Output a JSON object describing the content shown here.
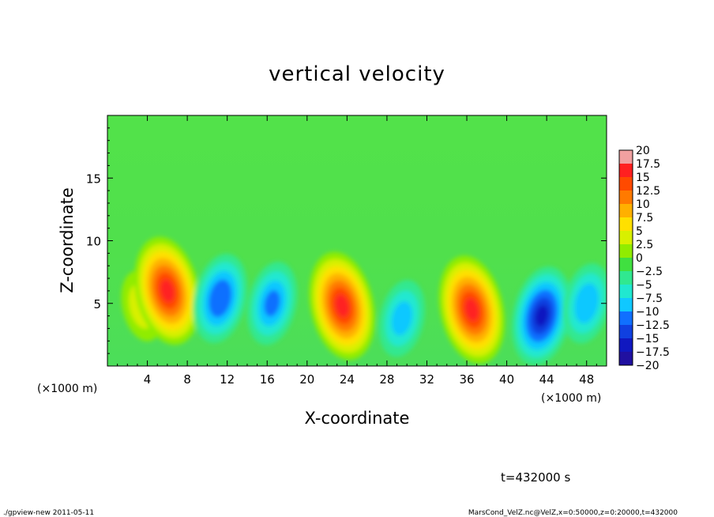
{
  "chart_data": {
    "type": "heatmap",
    "title": "vertical velocity",
    "xlabel": "X-coordinate",
    "ylabel": "Z-coordinate",
    "x_unit_left": "(×1000 m)",
    "x_unit_right": "(×1000 m)",
    "xlim": [
      0,
      50
    ],
    "ylim": [
      0,
      20
    ],
    "x_ticks": [
      4,
      8,
      12,
      16,
      20,
      24,
      28,
      32,
      36,
      40,
      44,
      48
    ],
    "y_ticks": [
      5,
      10,
      15
    ],
    "colorbar": {
      "labels": [
        "20",
        "17.5",
        "15",
        "12.5",
        "10",
        "7.5",
        "5",
        "2.5",
        "0",
        "−2.5",
        "−5",
        "−7.5",
        "−10",
        "−12.5",
        "−15",
        "−17.5",
        "−20"
      ],
      "min": -20,
      "max": 20,
      "colors": [
        "#f0a0a0",
        "#ff2020",
        "#ff4a00",
        "#ff7a00",
        "#ffb000",
        "#ffe000",
        "#d8f000",
        "#90ec00",
        "#40e040",
        "#30e890",
        "#20e8d0",
        "#10c8ff",
        "#1070ff",
        "#1040e0",
        "#1018c0",
        "#2010a0",
        "#6010b0"
      ]
    },
    "features": [
      {
        "x": 3.5,
        "z": 4.8,
        "value": 6
      },
      {
        "x": 6.0,
        "z": 6.0,
        "value": 18
      },
      {
        "x": 11.3,
        "z": 5.4,
        "value": -12
      },
      {
        "x": 16.5,
        "z": 5.0,
        "value": -10
      },
      {
        "x": 23.5,
        "z": 4.8,
        "value": 18
      },
      {
        "x": 29.5,
        "z": 3.8,
        "value": -8
      },
      {
        "x": 36.5,
        "z": 4.5,
        "value": 18
      },
      {
        "x": 43.5,
        "z": 4.0,
        "value": -15
      },
      {
        "x": 48.0,
        "z": 5.0,
        "value": -9
      }
    ],
    "time_label": "t=432000 s",
    "footer_left": "./gpview-new  2011-05-11",
    "footer_right": "MarsCond_VelZ.nc@VelZ,x=0:50000,z=0:20000,t=432000"
  }
}
